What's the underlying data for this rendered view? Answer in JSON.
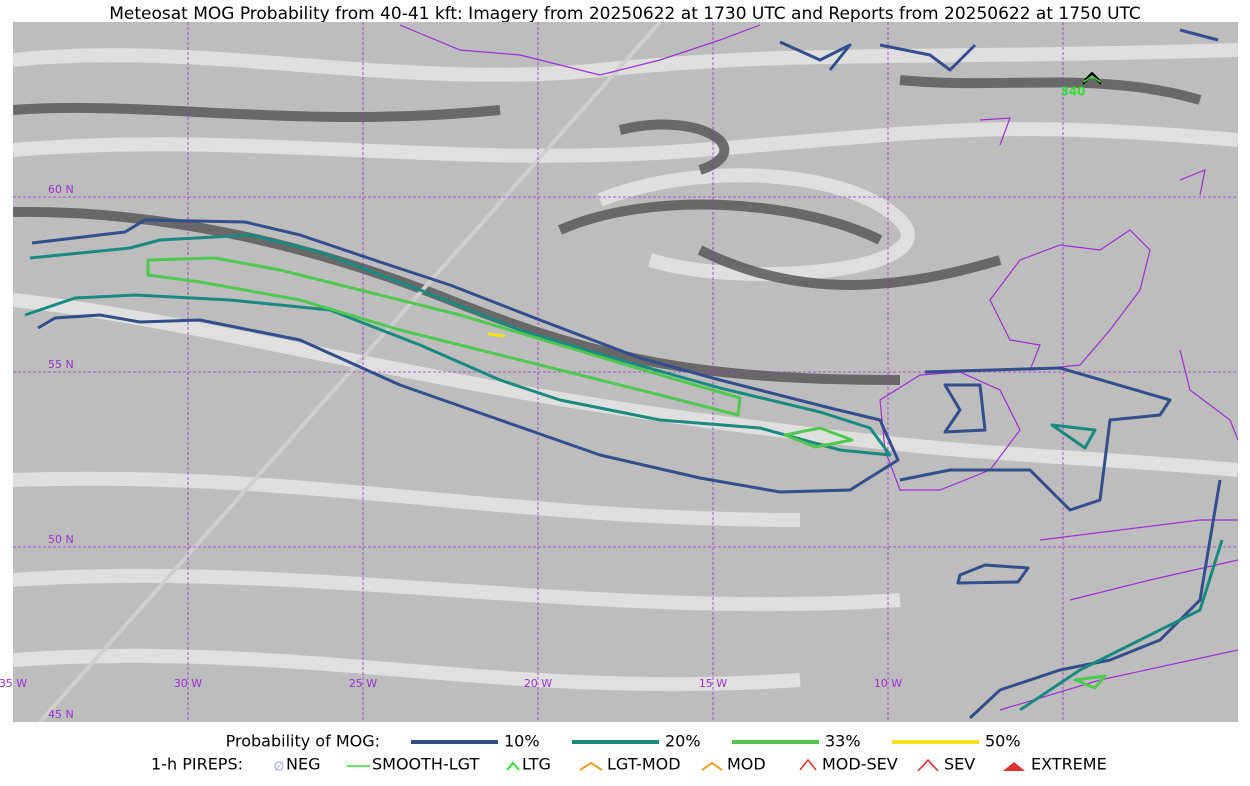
{
  "title": "Meteosat MOG Probability from 40-41 kft: Imagery from 20250622 at 1730 UTC and Reports from 20250622 at 1750 UTC",
  "map": {
    "latitude_labels": [
      "60 N",
      "55 N",
      "50 N",
      "45 N"
    ],
    "longitude_labels": [
      "35 W",
      "30 W",
      "25 W",
      "20 W",
      "15 W",
      "10 W"
    ],
    "pirep_labels": [
      "340"
    ]
  },
  "legend": {
    "probability": {
      "label": "Probability of MOG:",
      "items": [
        "10%",
        "20%",
        "33%",
        "50%"
      ]
    },
    "pireps": {
      "label": "1-h PIREPS:",
      "items": [
        "NEG",
        "SMOOTH-LGT",
        "LTG",
        "LGT-MOD",
        "MOD",
        "MOD-SEV",
        "SEV",
        "EXTREME"
      ]
    }
  }
}
